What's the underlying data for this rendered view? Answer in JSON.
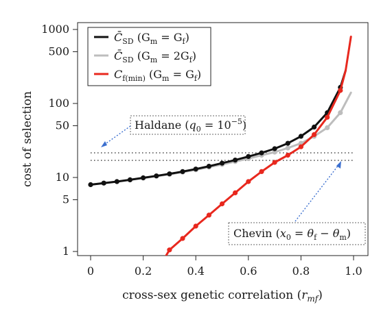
{
  "chart_data": {
    "type": "line",
    "xlabel": "cross-sex genetic correlation (r_mf)",
    "xlabel_parts": {
      "main": "cross-sex genetic correlation (",
      "var": "r",
      "sub": "mf",
      "close": ")"
    },
    "ylabel": "cost of selection",
    "x_scale": "linear",
    "y_scale": "log",
    "xlim": [
      0,
      1.0
    ],
    "ylim": [
      0.8,
      1100
    ],
    "x_ticks": [
      0,
      0.2,
      0.4,
      0.6,
      0.8,
      1.0
    ],
    "x_tick_labels": [
      "0",
      "0.2",
      "0.4",
      "0.6",
      "0.8",
      "1.0"
    ],
    "y_ticks": [
      1,
      5,
      10,
      50,
      100,
      500,
      1000
    ],
    "y_tick_labels": [
      "1",
      "5",
      "10",
      "50",
      "100",
      "500",
      "1000"
    ],
    "grid": false,
    "legend_position": "top-left",
    "series": [
      {
        "name": "C̄SD (Gm = Gf)",
        "legend": {
          "main": "C̄",
          "sub": "SD",
          "cond": " (G",
          "cond_sub1": "m",
          "eq": " = G",
          "cond_sub2": "f",
          "end": ")"
        },
        "color": "#111111",
        "x": [
          0,
          0.05,
          0.1,
          0.15,
          0.2,
          0.25,
          0.3,
          0.35,
          0.4,
          0.45,
          0.5,
          0.55,
          0.6,
          0.65,
          0.7,
          0.75,
          0.8,
          0.85,
          0.9,
          0.95,
          0.97
        ],
        "y": [
          8.0,
          8.4,
          8.8,
          9.3,
          9.9,
          10.5,
          11.2,
          12.0,
          13.0,
          14.2,
          15.6,
          17.2,
          19.2,
          21.5,
          24.5,
          29.0,
          36.0,
          48.0,
          75.0,
          165.0,
          280.0
        ],
        "markers_x": [
          0,
          0.05,
          0.1,
          0.15,
          0.2,
          0.25,
          0.3,
          0.35,
          0.4,
          0.45,
          0.5,
          0.55,
          0.6,
          0.65,
          0.7,
          0.75,
          0.8,
          0.85,
          0.9,
          0.95
        ]
      },
      {
        "name": "C̄SD (Gm = 2Gf)",
        "legend": {
          "main": "C̄",
          "sub": "SD",
          "cond": " (G",
          "cond_sub1": "m",
          "eq": " = 2G",
          "cond_sub2": "f",
          "end": ")"
        },
        "color": "#bdbdbd",
        "x": [
          0,
          0.05,
          0.1,
          0.15,
          0.2,
          0.25,
          0.3,
          0.35,
          0.4,
          0.45,
          0.5,
          0.55,
          0.6,
          0.65,
          0.7,
          0.75,
          0.8,
          0.85,
          0.9,
          0.95,
          0.99
        ],
        "y": [
          8.0,
          8.4,
          8.8,
          9.3,
          9.8,
          10.4,
          11.0,
          11.8,
          12.7,
          13.8,
          15.0,
          16.4,
          18.0,
          20.0,
          22.0,
          25.0,
          29.0,
          36.0,
          47.0,
          75.0,
          140.0
        ],
        "markers_x": [
          0,
          0.05,
          0.1,
          0.15,
          0.2,
          0.25,
          0.3,
          0.35,
          0.4,
          0.45,
          0.5,
          0.55,
          0.6,
          0.65,
          0.7,
          0.75,
          0.8,
          0.85,
          0.9,
          0.95
        ]
      },
      {
        "name": "Cf(min) (Gm = Gf)",
        "legend": {
          "main": "C",
          "sub": "f(min)",
          "cond": " (G",
          "cond_sub1": "m",
          "eq": " = G",
          "cond_sub2": "f",
          "end": ")"
        },
        "color": "#e8281e",
        "x": [
          0.28,
          0.3,
          0.35,
          0.4,
          0.45,
          0.5,
          0.55,
          0.6,
          0.65,
          0.7,
          0.75,
          0.8,
          0.85,
          0.9,
          0.95,
          0.97,
          0.99
        ],
        "y": [
          0.8,
          1.05,
          1.5,
          2.2,
          3.1,
          4.4,
          6.2,
          8.8,
          12.0,
          16.0,
          20.0,
          26.0,
          38.0,
          65.0,
          150.0,
          280.0,
          800.0
        ],
        "markers_x": [
          0.3,
          0.35,
          0.4,
          0.45,
          0.5,
          0.55,
          0.6,
          0.65,
          0.7,
          0.75,
          0.8,
          0.85,
          0.9,
          0.95
        ]
      }
    ],
    "reference_lines": [
      {
        "name": "Haldane",
        "y": 21.5,
        "x_from": 0,
        "x_to": 1.0,
        "style": "dotted",
        "color": "#555555"
      },
      {
        "name": "Chevin",
        "y": 17.0,
        "x_from": 0,
        "x_to": 1.0,
        "style": "dotted",
        "color": "#555555"
      }
    ],
    "annotations": [
      {
        "id": "haldane",
        "text": {
          "pre": "Haldane (",
          "var": "q",
          "sub": "0",
          "mid": " = 10",
          "sup": "−5",
          "end": ")"
        },
        "box_x": 0.14,
        "box_y": 28,
        "arrow_from": [
          0.15,
          35
        ],
        "arrow_to": [
          0.03,
          21.5
        ]
      },
      {
        "id": "chevin",
        "text": {
          "pre": "Chevin (",
          "var1": "x",
          "sub1": "0",
          "mid": " = ",
          "var2": "θ",
          "sub2": "f",
          "minus": " − ",
          "var3": "θ",
          "sub3": "m",
          "end": ")"
        },
        "box_x": 0.78,
        "box_y": 1.6,
        "arrow_from": [
          0.84,
          3.0
        ],
        "arrow_to": [
          0.955,
          17.0
        ]
      }
    ]
  }
}
